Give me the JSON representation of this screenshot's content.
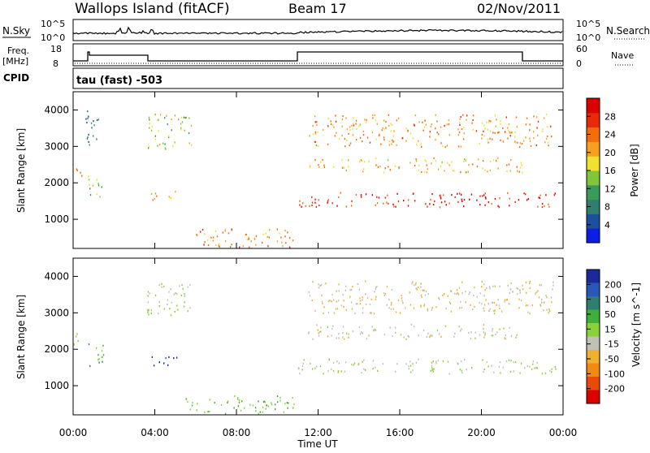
{
  "header": {
    "station": "Wallops Island (fitACF)",
    "beam": "Beam 17",
    "date": "02/Nov/2011"
  },
  "noise_panel": {
    "left_label": "N.Sky",
    "left_tick_top": "10^5",
    "left_tick_bottom": "10^0",
    "right_label": "N.Search",
    "right_tick_top": "10^5",
    "right_tick_bottom": "10^0"
  },
  "freq_panel": {
    "left_label_1": "Freq.",
    "left_label_2": "[MHz]",
    "left_tick_top": "18",
    "left_tick_bottom": "8",
    "right_label": "Nave",
    "right_tick_top": "60",
    "right_tick_bottom": "0"
  },
  "cpid": {
    "label": "CPID",
    "value": "tau (fast) -503"
  },
  "x_axis": {
    "title": "Time UT",
    "ticks": [
      "00:00",
      "04:00",
      "08:00",
      "12:00",
      "16:00",
      "20:00",
      "00:00"
    ]
  },
  "chart_data": [
    {
      "type": "heatmap",
      "title": "",
      "xlabel": "Time UT",
      "ylabel": "Slant Range [km]",
      "x_range_hours": [
        0,
        24
      ],
      "y_range_km": [
        200,
        4500
      ],
      "y_ticks": [
        "1000",
        "2000",
        "3000",
        "4000"
      ],
      "colorbar": {
        "label": "Power [dB]",
        "ticks": [
          "4",
          "8",
          "12",
          "16",
          "20",
          "24",
          "28"
        ],
        "colors": [
          "#0a1ee6",
          "#1d4fa0",
          "#2f7f6e",
          "#3a9a5a",
          "#7fc63a",
          "#f0e030",
          "#f7a020",
          "#f26d10",
          "#e82a08",
          "#dd0000"
        ]
      },
      "regions": [
        {
          "t0": 0.0,
          "t1": 0.6,
          "r0": 2150,
          "r1": 2450,
          "value_db": 26
        },
        {
          "t0": 0.6,
          "t1": 1.4,
          "r0": 3000,
          "r1": 4000,
          "value_db": 8
        },
        {
          "t0": 0.7,
          "t1": 1.5,
          "r0": 1550,
          "r1": 2200,
          "value_db": 15
        },
        {
          "t0": 3.6,
          "t1": 5.8,
          "r0": 2950,
          "r1": 3900,
          "value_db": 16
        },
        {
          "t0": 3.8,
          "t1": 5.2,
          "r0": 1550,
          "r1": 1850,
          "value_db": 18
        },
        {
          "t0": 5.5,
          "t1": 10.8,
          "r0": 250,
          "r1": 750,
          "value_db": 22
        },
        {
          "t0": 11.0,
          "t1": 23.9,
          "r0": 1350,
          "r1": 1750,
          "value_db": 28
        },
        {
          "t0": 11.5,
          "t1": 22.0,
          "r0": 2300,
          "r1": 2700,
          "value_db": 20
        },
        {
          "t0": 11.5,
          "t1": 23.5,
          "r0": 3000,
          "r1": 3900,
          "value_db": 22
        }
      ]
    },
    {
      "type": "heatmap",
      "title": "",
      "xlabel": "Time UT",
      "ylabel": "Slant Range [km]",
      "x_range_hours": [
        0,
        24
      ],
      "y_range_km": [
        200,
        4500
      ],
      "y_ticks": [
        "1000",
        "2000",
        "3000",
        "4000"
      ],
      "colorbar": {
        "label": "Velocity [m s^-1]",
        "ticks": [
          "200",
          "100",
          "50",
          "15",
          "-15",
          "-50",
          "-100",
          "-200"
        ],
        "colors": [
          "#1a2a9a",
          "#2a58b8",
          "#2f7f6e",
          "#3fae3a",
          "#8ad23a",
          "#c0c0b8",
          "#f0b030",
          "#f28a10",
          "#e84a08",
          "#dd0000"
        ]
      },
      "regions": [
        {
          "t0": 0.0,
          "t1": 0.6,
          "r0": 2150,
          "r1": 2450,
          "value_ms": 0
        },
        {
          "t0": 0.7,
          "t1": 1.5,
          "r0": 1550,
          "r1": 2200,
          "value_ms": 60
        },
        {
          "t0": 3.8,
          "t1": 5.2,
          "r0": 1550,
          "r1": 1850,
          "value_ms": 180
        },
        {
          "t0": 3.6,
          "t1": 5.8,
          "r0": 2950,
          "r1": 3900,
          "value_ms": 0
        },
        {
          "t0": 5.5,
          "t1": 10.8,
          "r0": 250,
          "r1": 750,
          "value_ms": 40
        },
        {
          "t0": 11.0,
          "t1": 23.9,
          "r0": 1350,
          "r1": 1750,
          "value_ms": 0
        },
        {
          "t0": 11.5,
          "t1": 22.0,
          "r0": 2300,
          "r1": 2700,
          "value_ms": -20
        },
        {
          "t0": 11.5,
          "t1": 23.5,
          "r0": 3000,
          "r1": 3900,
          "value_ms": -40
        }
      ]
    }
  ]
}
